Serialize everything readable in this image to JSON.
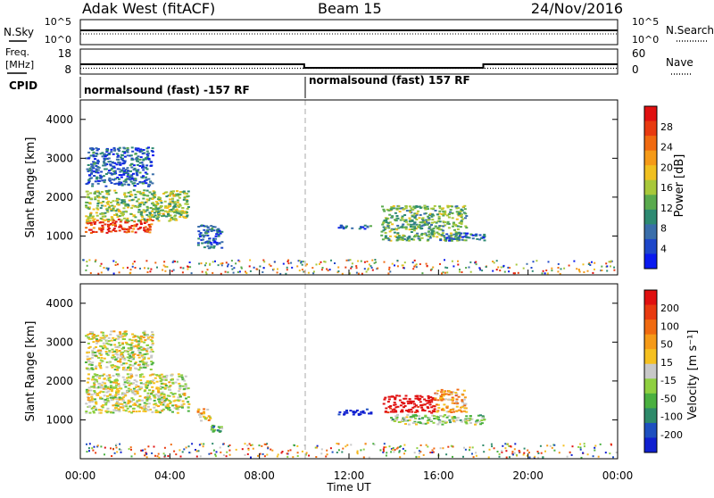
{
  "header": {
    "station": "Adak West (fitACF)",
    "beam": "Beam 15",
    "date": "24/Nov/2016"
  },
  "side_labels": {
    "nsky": "N.Sky",
    "freq_line1": "Freq.",
    "freq_line2": "[MHz]",
    "cpid": "CPID",
    "nsearch": "N.Search",
    "nave": "Nave"
  },
  "xaxis": {
    "label": "Time UT",
    "ticks": [
      "00:00",
      "04:00",
      "08:00",
      "12:00",
      "16:00",
      "20:00",
      "00:00"
    ]
  },
  "cpid_blocks": [
    {
      "label": "normalsound (fast) -157 RF"
    },
    {
      "label": "normalsound (fast) 157 RF"
    }
  ],
  "noise_panel": {
    "left_ticks": [
      "10^5",
      "10^0"
    ],
    "right_ticks": [
      "10^5",
      "10^0"
    ]
  },
  "freq_panel": {
    "left_ticks": [
      "18",
      "8"
    ],
    "right_ticks": [
      "60",
      "0"
    ]
  },
  "power_panel": {
    "ylabel": "Slant Range [km]",
    "yticks": [
      "4000",
      "3000",
      "2000",
      "1000"
    ],
    "colorbar_label": "Power [dB]",
    "colorbar_ticks": [
      "28",
      "24",
      "20",
      "16",
      "12",
      "8",
      "4"
    ],
    "colors": [
      "#0a1aef",
      "#1e47c9",
      "#3a6eaa",
      "#2e8a72",
      "#5aaa4e",
      "#a8c83a",
      "#f0c020",
      "#f59a18",
      "#f06a10",
      "#e83a10",
      "#e01010"
    ]
  },
  "velocity_panel": {
    "ylabel": "Slant Range [km]",
    "yticks": [
      "4000",
      "3000",
      "2000",
      "1000"
    ],
    "colorbar_label": "Velocity [m s⁻¹]",
    "colorbar_ticks": [
      "200",
      "100",
      "50",
      "15",
      "-15",
      "-50",
      "-100",
      "-200"
    ],
    "colors": [
      "#1020d0",
      "#1e50c0",
      "#2e8a6a",
      "#4ab040",
      "#8fd040",
      "#c8c8c8",
      "#f5c020",
      "#f59a18",
      "#f06a10",
      "#e83a10",
      "#e01010"
    ]
  },
  "chart_data": [
    {
      "type": "line",
      "title": "Adak West (fitACF)  Beam 15  24/Nov/2016",
      "x": [
        "00:00",
        "04:00",
        "08:00",
        "12:00",
        "16:00",
        "20:00",
        "00:00"
      ],
      "series": [
        {
          "name": "N.Sky",
          "values": [
            1000,
            1000,
            1000,
            1000,
            1000,
            1000,
            1000
          ]
        },
        {
          "name": "N.Search",
          "values": [
            100,
            100,
            100,
            100,
            100,
            100,
            100
          ]
        }
      ],
      "ylabel": "N.Sky",
      "log_scale": true
    },
    {
      "type": "line",
      "x": [
        "00:00",
        "10:00",
        "10:00",
        "18:00",
        "18:00",
        "24:00"
      ],
      "series": [
        {
          "name": "Freq.",
          "values": [
            12,
            12,
            10,
            10,
            12,
            12
          ]
        },
        {
          "name": "Nave",
          "values": [
            5,
            5,
            5,
            5,
            5,
            5
          ]
        }
      ],
      "ylabel": "Freq. [MHz]",
      "ylim": [
        8,
        18
      ]
    },
    {
      "type": "heatmap",
      "quantity": "Power [dB]",
      "xlabel": "Time UT",
      "ylabel": "Slant Range [km]",
      "xlim": [
        "00:00",
        "24:00"
      ],
      "ylim": [
        0,
        4500
      ],
      "clim": [
        0,
        30
      ],
      "regions": [
        {
          "t_start": 0.2,
          "t_end": 3.2,
          "range_start": 1100,
          "range_end": 1450,
          "value": 26
        },
        {
          "t_start": 0.2,
          "t_end": 4.8,
          "range_start": 1400,
          "range_end": 2200,
          "value": 14
        },
        {
          "t_start": 0.2,
          "t_end": 3.2,
          "range_start": 2300,
          "range_end": 3300,
          "value": 6
        },
        {
          "t_start": 5.2,
          "t_end": 6.3,
          "range_start": 700,
          "range_end": 1300,
          "value": 6
        },
        {
          "t_start": 11.5,
          "t_end": 13.0,
          "range_start": 1200,
          "range_end": 1300,
          "value": 6
        },
        {
          "t_start": 13.4,
          "t_end": 17.2,
          "range_start": 900,
          "range_end": 1800,
          "value": 12
        },
        {
          "t_start": 16.0,
          "t_end": 18.0,
          "range_start": 900,
          "range_end": 1100,
          "value": 6
        }
      ]
    },
    {
      "type": "heatmap",
      "quantity": "Velocity [m s-1]",
      "xlabel": "Time UT",
      "ylabel": "Slant Range [km]",
      "xlim": [
        "00:00",
        "24:00"
      ],
      "ylim": [
        0,
        4500
      ],
      "clim": [
        -200,
        200
      ],
      "regions": [
        {
          "t_start": 0.2,
          "t_end": 4.8,
          "range_start": 1200,
          "range_end": 2200,
          "value": 0
        },
        {
          "t_start": 0.2,
          "t_end": 3.2,
          "range_start": 2300,
          "range_end": 3300,
          "value": 0
        },
        {
          "t_start": 5.2,
          "t_end": 5.8,
          "range_start": 1000,
          "range_end": 1300,
          "value": 40
        },
        {
          "t_start": 5.8,
          "t_end": 6.3,
          "range_start": 700,
          "range_end": 900,
          "value": -80
        },
        {
          "t_start": 11.5,
          "t_end": 13.0,
          "range_start": 1150,
          "range_end": 1300,
          "value": -220
        },
        {
          "t_start": 13.5,
          "t_end": 15.8,
          "range_start": 1200,
          "range_end": 1650,
          "value": 220
        },
        {
          "t_start": 15.8,
          "t_end": 17.2,
          "range_start": 1200,
          "range_end": 1800,
          "value": 60
        },
        {
          "t_start": 13.8,
          "t_end": 18.0,
          "range_start": 900,
          "range_end": 1150,
          "value": -40
        }
      ]
    }
  ]
}
